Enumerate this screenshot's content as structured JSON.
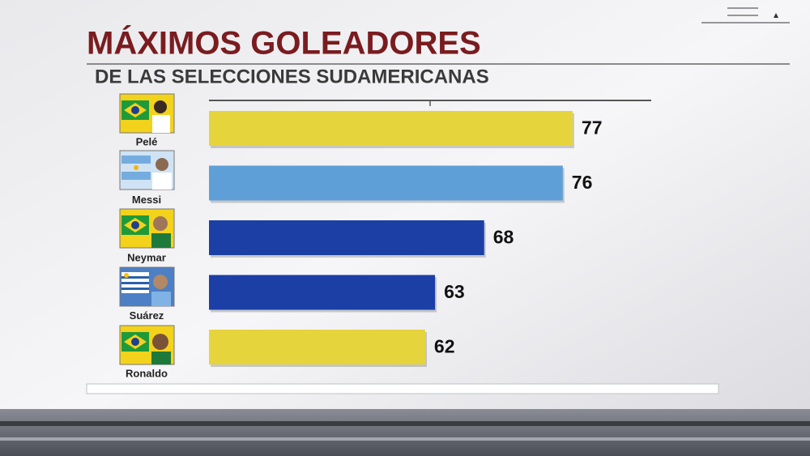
{
  "chart_data": {
    "type": "bar",
    "orientation": "horizontal",
    "title": "MÁXIMOS GOLEADORES",
    "subtitle": "DE LAS SELECCIONES SUDAMERICANAS",
    "categories": [
      "Pelé",
      "Messi",
      "Neymar",
      "Suárez",
      "Ronaldo"
    ],
    "values": [
      77,
      76,
      68,
      63,
      62
    ],
    "colors": [
      "#e6d43c",
      "#5f9fd8",
      "#1c3fa6",
      "#1c3fa6",
      "#e6d43c"
    ],
    "xlim": [
      40,
      85
    ]
  }
}
